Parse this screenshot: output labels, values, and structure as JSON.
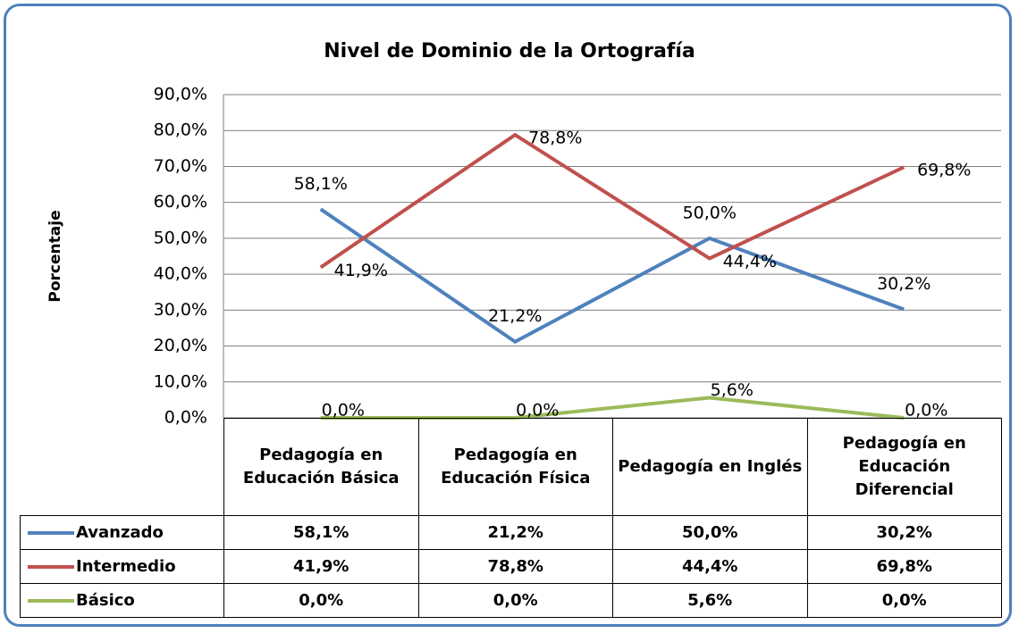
{
  "chart_data": {
    "type": "line",
    "title": "Nivel de Dominio de la Ortografía",
    "y_label": "Porcentaje",
    "categories": [
      "Pedagogía en Educación Básica",
      "Pedagogía en Educación Física",
      "Pedagogía en Inglés",
      "Pedagogía en Educación Diferencial"
    ],
    "series": [
      {
        "name": "Avanzado",
        "color": "#4f81bd",
        "values": [
          58.1,
          21.2,
          50.0,
          30.2
        ],
        "value_labels": [
          "58,1%",
          "21,2%",
          "50,0%",
          "30,2%"
        ]
      },
      {
        "name": "Intermedio",
        "color": "#c0504d",
        "values": [
          41.9,
          78.8,
          44.4,
          69.8
        ],
        "value_labels": [
          "41,9%",
          "78,8%",
          "44,4%",
          "69,8%"
        ]
      },
      {
        "name": "Básico",
        "color": "#9bbb59",
        "values": [
          0.0,
          0.0,
          5.6,
          0.0
        ],
        "value_labels": [
          "0,0%",
          "0,0%",
          "5,6%",
          "0,0%"
        ]
      }
    ],
    "ylim": [
      0,
      90
    ],
    "yticks": [
      {
        "value": 0,
        "label": "0,0%"
      },
      {
        "value": 10,
        "label": "10,0%"
      },
      {
        "value": 20,
        "label": "20,0%"
      },
      {
        "value": 30,
        "label": "30,0%"
      },
      {
        "value": 40,
        "label": "40,0%"
      },
      {
        "value": 50,
        "label": "50,0%"
      },
      {
        "value": 60,
        "label": "60,0%"
      },
      {
        "value": 70,
        "label": "70,0%"
      },
      {
        "value": 80,
        "label": "80,0%"
      },
      {
        "value": 90,
        "label": "90,0%"
      }
    ],
    "grid": true
  }
}
